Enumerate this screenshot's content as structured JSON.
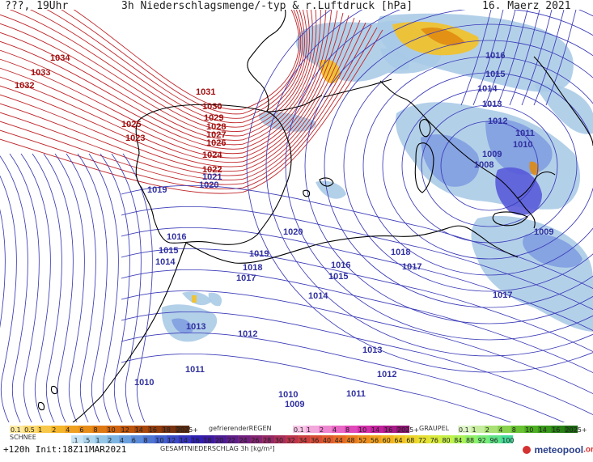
{
  "header": {
    "left": "???, 19Uhr",
    "title": "3h Niederschlagsmenge/-typ & r.Luftdruck [hPa]",
    "date": "16. Maerz 2021"
  },
  "footer": {
    "run": "+120h  Init:18Z11MAR2021",
    "brand_text": "meteopool",
    "brand_suffix": ".org"
  },
  "map": {
    "sea_color": "#ffffff",
    "land_stroke": "#000000",
    "high_isobar_color": "#c0262a",
    "low_isobar_color": "#3a3ab8",
    "high_label_color": "#a01010",
    "low_label_color": "#3030a0",
    "precip_colors": {
      "light": "#a9c9e6",
      "mid": "#7f9ce0",
      "heavy": "#5757d8",
      "snow": "#f5c021",
      "snow_deep": "#e08a10"
    },
    "pressure_labels": [
      {
        "text": "1034",
        "kind": "high"
      },
      {
        "text": "1033",
        "kind": "high"
      },
      {
        "text": "1032",
        "kind": "high"
      },
      {
        "text": "1031",
        "kind": "high"
      },
      {
        "text": "1030",
        "kind": "high"
      },
      {
        "text": "1029",
        "kind": "high"
      },
      {
        "text": "1028",
        "kind": "high"
      },
      {
        "text": "1027",
        "kind": "high"
      },
      {
        "text": "1026",
        "kind": "high"
      },
      {
        "text": "1025",
        "kind": "high"
      },
      {
        "text": "1023",
        "kind": "high"
      },
      {
        "text": "1024",
        "kind": "high"
      },
      {
        "text": "1022",
        "kind": "high"
      },
      {
        "text": "1021",
        "kind": "low"
      },
      {
        "text": "1020",
        "kind": "low"
      },
      {
        "text": "1019",
        "kind": "low"
      },
      {
        "text": "1020",
        "kind": "low"
      },
      {
        "text": "1016",
        "kind": "low"
      },
      {
        "text": "1015",
        "kind": "low"
      },
      {
        "text": "1014",
        "kind": "low"
      },
      {
        "text": "1019",
        "kind": "low"
      },
      {
        "text": "1018",
        "kind": "low"
      },
      {
        "text": "1017",
        "kind": "low"
      },
      {
        "text": "1016",
        "kind": "low"
      },
      {
        "text": "1015",
        "kind": "low"
      },
      {
        "text": "1018",
        "kind": "low"
      },
      {
        "text": "1017",
        "kind": "low"
      },
      {
        "text": "1014",
        "kind": "low"
      },
      {
        "text": "1013",
        "kind": "low"
      },
      {
        "text": "1012",
        "kind": "low"
      },
      {
        "text": "1013",
        "kind": "low"
      },
      {
        "text": "1012",
        "kind": "low"
      },
      {
        "text": "1011",
        "kind": "low"
      },
      {
        "text": "1010",
        "kind": "low"
      },
      {
        "text": "1011",
        "kind": "low"
      },
      {
        "text": "1010",
        "kind": "low"
      },
      {
        "text": "1009",
        "kind": "low"
      },
      {
        "text": "1015",
        "kind": "low"
      },
      {
        "text": "1014",
        "kind": "low"
      },
      {
        "text": "1016",
        "kind": "low"
      },
      {
        "text": "1013",
        "kind": "low"
      },
      {
        "text": "1012",
        "kind": "low"
      },
      {
        "text": "1011",
        "kind": "low"
      },
      {
        "text": "1010",
        "kind": "low"
      },
      {
        "text": "1009",
        "kind": "low"
      },
      {
        "text": "1008",
        "kind": "low"
      },
      {
        "text": "1009",
        "kind": "low"
      },
      {
        "text": "1017",
        "kind": "low"
      }
    ]
  },
  "legend": {
    "snow": {
      "label": "SCHNEE",
      "values": [
        "0.1",
        "0.5",
        "1",
        "2",
        "4",
        "6",
        "8",
        "10",
        "12",
        "14",
        "16",
        "18",
        "2025+"
      ],
      "colors": [
        "#fde9a0",
        "#fbd870",
        "#f8c84a",
        "#f4b52a",
        "#efa020",
        "#e88c18",
        "#dd7812",
        "#cf640e",
        "#bd540c",
        "#a8470c",
        "#8f3b0c",
        "#783210",
        "#5a2a10"
      ]
    },
    "freezing_rain": {
      "label": "gefrierenderREGEN",
      "values": [
        "0.1",
        "1",
        "2",
        "4",
        "8",
        "10",
        "14",
        "16",
        "2025+"
      ],
      "colors": [
        "#f7c6e6",
        "#f3a8dc",
        "#ee86d0",
        "#e866c4",
        "#df48b8",
        "#d32eaa",
        "#c0209a",
        "#a81a88",
        "#8a1470"
      ]
    },
    "graupel": {
      "label": "GRAUPEL",
      "values": [
        "0.1",
        "1",
        "2",
        "4",
        "8",
        "10",
        "14",
        "16",
        "2025+"
      ],
      "colors": [
        "#dff4c8",
        "#c6ec9e",
        "#a8e074",
        "#88d24e",
        "#68c232",
        "#4cae20",
        "#389818",
        "#288014",
        "#1a6810"
      ]
    },
    "total": {
      "label": "GESAMTNIEDERSCHLAG 3h [kg/m²]",
      "values": [
        ".1",
        ".5",
        "1",
        "2",
        "4",
        "6",
        "8",
        "10",
        "12",
        "14",
        "16",
        "18",
        "20",
        "22",
        "24",
        "26",
        "28",
        "30",
        "32",
        "34",
        "36",
        "40",
        "44",
        "48",
        "52",
        "56",
        "60",
        "64",
        "68",
        "72",
        "76",
        "80",
        "84",
        "88",
        "92",
        "96",
        "100"
      ],
      "colors": [
        "#c8e4f4",
        "#aed6ee",
        "#94c6e8",
        "#7cb4e2",
        "#6aa0e0",
        "#5a8ad8",
        "#4c74d0",
        "#4060cc",
        "#3a4ac4",
        "#3434bc",
        "#2e20b0",
        "#3a1aa0",
        "#4c1c94",
        "#5e1e88",
        "#70207c",
        "#822470",
        "#942864",
        "#a82e58",
        "#bc344c",
        "#cc4040",
        "#d84c34",
        "#e05a2c",
        "#e66a24",
        "#ea7c20",
        "#ee8e1e",
        "#f0a01e",
        "#f2b220",
        "#f2c424",
        "#eed42a",
        "#e6e032",
        "#d8ea3c",
        "#c4f048",
        "#acf256",
        "#92f066",
        "#78ec76",
        "#5ee488",
        "#44da9a"
      ]
    }
  }
}
